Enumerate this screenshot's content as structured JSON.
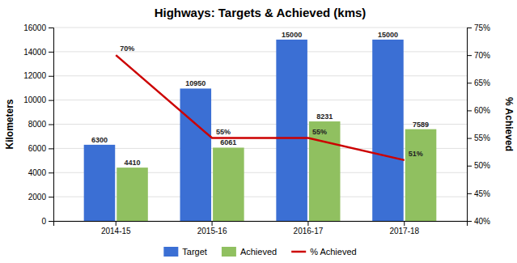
{
  "chart_data": {
    "type": "bar",
    "title": "Highways: Targets & Achieved (kms)",
    "categories": [
      "2014-15",
      "2015-16",
      "2016-17",
      "2017-18"
    ],
    "series": [
      {
        "name": "Target",
        "color": "#3B6FD4",
        "values": [
          6300,
          10950,
          15000,
          15000
        ]
      },
      {
        "name": "Achieved",
        "color": "#90C060",
        "values": [
          4410,
          6061,
          8231,
          7589
        ]
      },
      {
        "name": "% Achieved",
        "type": "line",
        "axis": "y2",
        "color": "#CC0000",
        "values": [
          70,
          55,
          55,
          51
        ],
        "value_labels": [
          "70%",
          "55%",
          "55%",
          "51%"
        ]
      }
    ],
    "ylabel": "Kilometers",
    "y2label": "% Achieved",
    "ylim": [
      0,
      16000
    ],
    "yticks": [
      0,
      2000,
      4000,
      6000,
      8000,
      10000,
      12000,
      14000,
      16000
    ],
    "y2lim": [
      40,
      75
    ],
    "y2ticks": [
      {
        "value": 40,
        "label": "40%"
      },
      {
        "value": 45,
        "label": "45%"
      },
      {
        "value": 50,
        "label": "50%"
      },
      {
        "value": 55,
        "label": "55%"
      },
      {
        "value": 60,
        "label": "60%"
      },
      {
        "value": 65,
        "label": "65%"
      },
      {
        "value": 70,
        "label": "70%"
      },
      {
        "value": 75,
        "label": "75%"
      }
    ],
    "grid": true,
    "data_labels": true,
    "legend": "bottom"
  }
}
